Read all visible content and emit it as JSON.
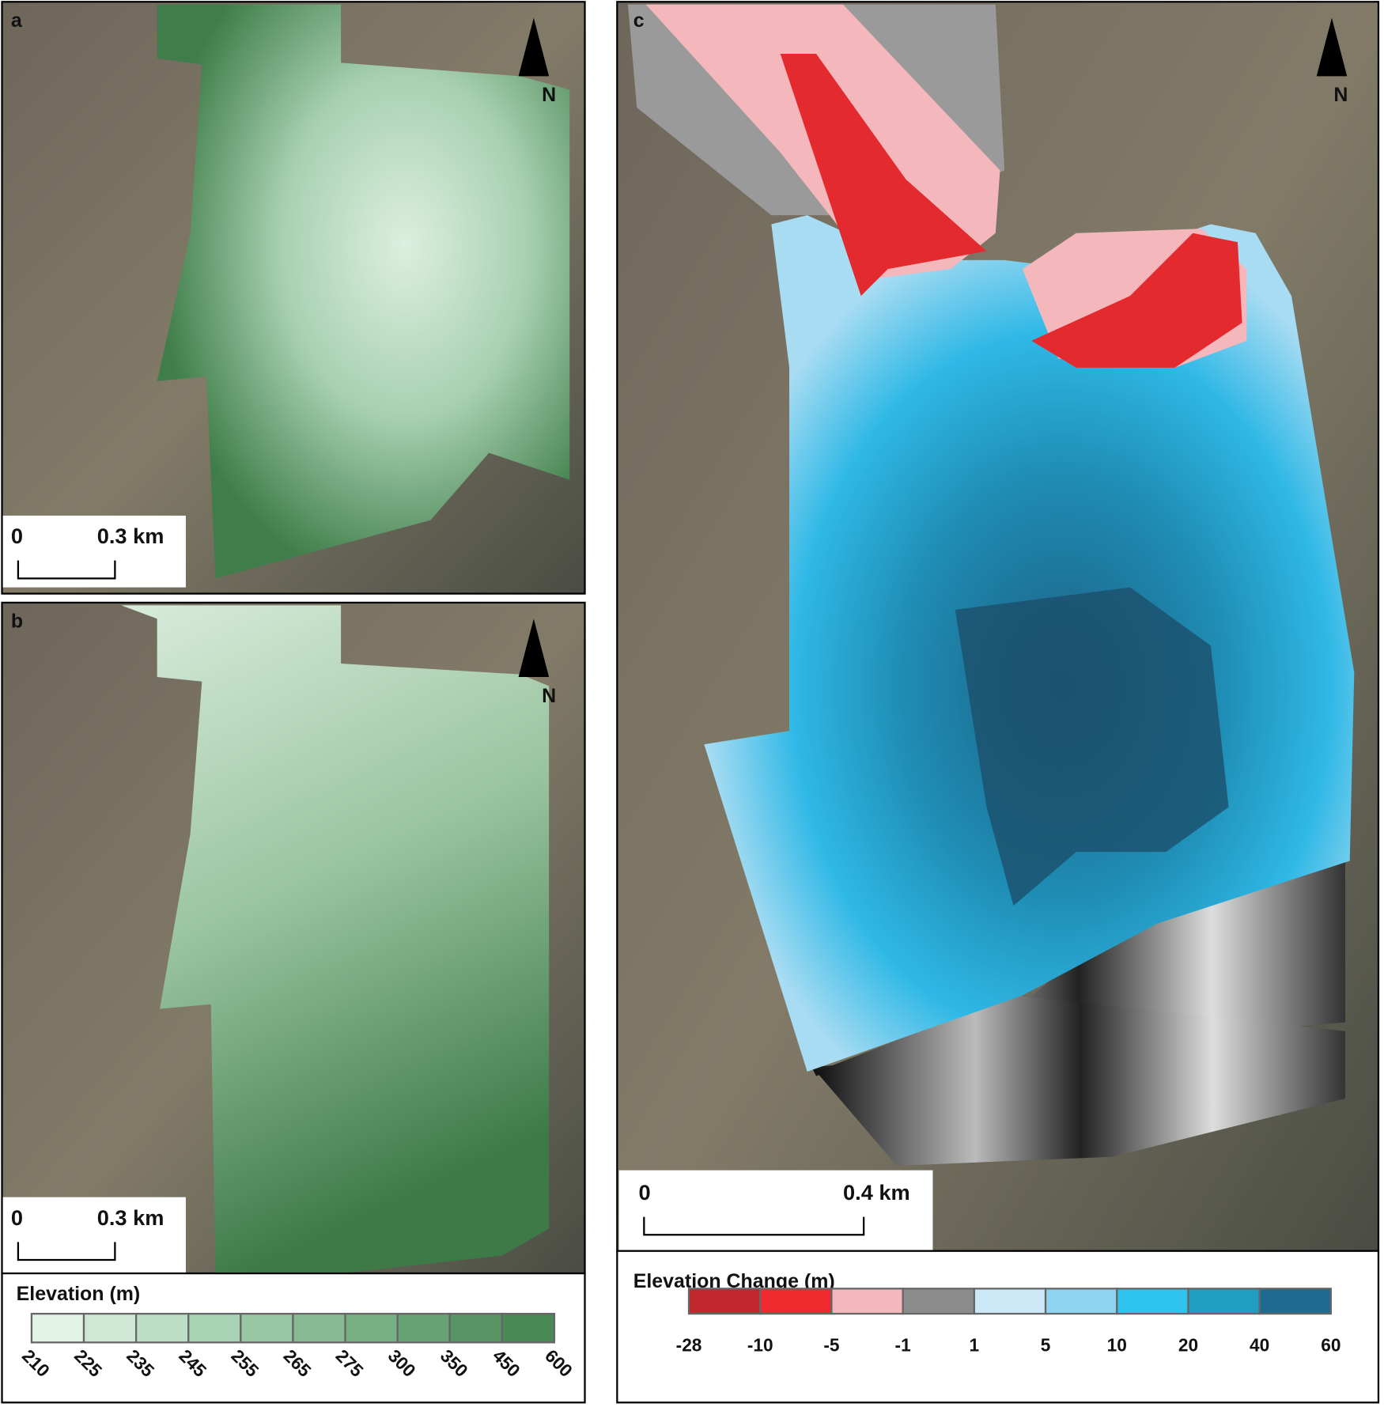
{
  "panels": [
    {
      "label": "a",
      "north": "N",
      "scale": {
        "start": "0",
        "end": "0.3 km"
      }
    },
    {
      "label": "b",
      "north": "N",
      "scale": {
        "start": "0",
        "end": "0.3 km"
      }
    },
    {
      "label": "c",
      "north": "N",
      "scale": {
        "start": "0",
        "end": "0.4 km"
      }
    }
  ],
  "legends": [
    {
      "title": "Elevation (m)",
      "breaks": [
        210,
        225,
        235,
        245,
        255,
        265,
        275,
        300,
        350,
        450,
        600
      ],
      "colors": [
        "#e2f3e7",
        "#cfe8d6",
        "#bcdec5",
        "#aad3b4",
        "#98c8a3",
        "#87bc93",
        "#76b083",
        "#66a373",
        "#579664",
        "#488956"
      ]
    },
    {
      "title": "Elevation Change (m)",
      "breaks": [
        -28,
        -10,
        -5,
        -1,
        1,
        5,
        10,
        20,
        40,
        60
      ],
      "colors": [
        "#c1272d",
        "#ee2a2f",
        "#f4b8bc",
        "#8c8c8c",
        "#cde9f8",
        "#8ed3f2",
        "#2fc3f0",
        "#1f9dc3",
        "#1d6b90"
      ]
    }
  ]
}
